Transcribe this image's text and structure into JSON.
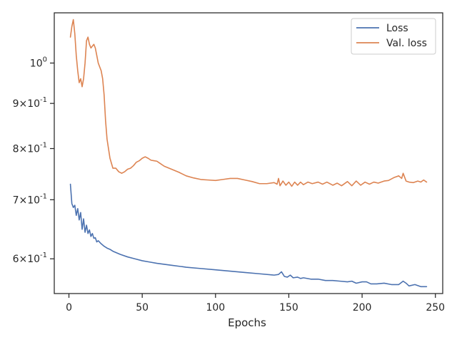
{
  "chart_data": {
    "type": "line",
    "title": "",
    "xlabel": "Epochs",
    "ylabel": "",
    "xlim": [
      -10,
      255
    ],
    "ylim": [
      0.548,
      1.14
    ],
    "yscale": "log",
    "grid": false,
    "legend_position": "top-right",
    "x_ticks": [
      0,
      50,
      100,
      150,
      200,
      250
    ],
    "x_tick_labels": [
      "0",
      "50",
      "100",
      "150",
      "200",
      "250"
    ],
    "y_ticks": [
      1.0,
      0.9,
      0.8,
      0.7,
      0.6
    ],
    "y_tick_labels": [
      "10^0",
      "9×10^-1",
      "8×10^-1",
      "7×10^-1",
      "6×10^-1"
    ],
    "series": [
      {
        "name": "Loss",
        "color": "#4c72b0",
        "points": [
          [
            1,
            0.729
          ],
          [
            2,
            0.693
          ],
          [
            3,
            0.686
          ],
          [
            4,
            0.69
          ],
          [
            5,
            0.672
          ],
          [
            6,
            0.684
          ],
          [
            7,
            0.664
          ],
          [
            8,
            0.677
          ],
          [
            9,
            0.648
          ],
          [
            10,
            0.666
          ],
          [
            11,
            0.643
          ],
          [
            12,
            0.655
          ],
          [
            13,
            0.641
          ],
          [
            14,
            0.647
          ],
          [
            15,
            0.636
          ],
          [
            16,
            0.641
          ],
          [
            17,
            0.633
          ],
          [
            18,
            0.634
          ],
          [
            19,
            0.627
          ],
          [
            20,
            0.629
          ],
          [
            22,
            0.624
          ],
          [
            24,
            0.62
          ],
          [
            26,
            0.617
          ],
          [
            28,
            0.615
          ],
          [
            30,
            0.612
          ],
          [
            32,
            0.61
          ],
          [
            35,
            0.607
          ],
          [
            40,
            0.603
          ],
          [
            45,
            0.6
          ],
          [
            50,
            0.597
          ],
          [
            55,
            0.595
          ],
          [
            60,
            0.593
          ],
          [
            70,
            0.59
          ],
          [
            80,
            0.587
          ],
          [
            90,
            0.585
          ],
          [
            100,
            0.583
          ],
          [
            110,
            0.581
          ],
          [
            120,
            0.579
          ],
          [
            130,
            0.577
          ],
          [
            140,
            0.575
          ],
          [
            143,
            0.576
          ],
          [
            145,
            0.58
          ],
          [
            147,
            0.573
          ],
          [
            149,
            0.572
          ],
          [
            151,
            0.575
          ],
          [
            153,
            0.571
          ],
          [
            156,
            0.572
          ],
          [
            158,
            0.57
          ],
          [
            160,
            0.571
          ],
          [
            165,
            0.569
          ],
          [
            170,
            0.569
          ],
          [
            175,
            0.567
          ],
          [
            180,
            0.567
          ],
          [
            185,
            0.566
          ],
          [
            190,
            0.565
          ],
          [
            193,
            0.566
          ],
          [
            196,
            0.563
          ],
          [
            200,
            0.565
          ],
          [
            203,
            0.565
          ],
          [
            206,
            0.562
          ],
          [
            210,
            0.562
          ],
          [
            215,
            0.563
          ],
          [
            220,
            0.561
          ],
          [
            225,
            0.561
          ],
          [
            228,
            0.566
          ],
          [
            230,
            0.563
          ],
          [
            232,
            0.559
          ],
          [
            236,
            0.561
          ],
          [
            240,
            0.558
          ],
          [
            244,
            0.558
          ]
        ]
      },
      {
        "name": "Val. loss",
        "color": "#dd8452",
        "points": [
          [
            1,
            1.07
          ],
          [
            2,
            1.1
          ],
          [
            3,
            1.12
          ],
          [
            4,
            1.08
          ],
          [
            5,
            1.02
          ],
          [
            6,
            0.98
          ],
          [
            7,
            0.95
          ],
          [
            8,
            0.96
          ],
          [
            9,
            0.94
          ],
          [
            10,
            0.96
          ],
          [
            11,
            1.0
          ],
          [
            12,
            1.06
          ],
          [
            13,
            1.07
          ],
          [
            14,
            1.05
          ],
          [
            15,
            1.04
          ],
          [
            16,
            1.045
          ],
          [
            17,
            1.05
          ],
          [
            18,
            1.04
          ],
          [
            19,
            1.02
          ],
          [
            20,
            1.0
          ],
          [
            22,
            0.98
          ],
          [
            23,
            0.96
          ],
          [
            24,
            0.92
          ],
          [
            25,
            0.86
          ],
          [
            26,
            0.82
          ],
          [
            28,
            0.78
          ],
          [
            30,
            0.76
          ],
          [
            32,
            0.76
          ],
          [
            34,
            0.753
          ],
          [
            36,
            0.75
          ],
          [
            38,
            0.753
          ],
          [
            40,
            0.758
          ],
          [
            42,
            0.76
          ],
          [
            44,
            0.765
          ],
          [
            46,
            0.772
          ],
          [
            48,
            0.775
          ],
          [
            50,
            0.78
          ],
          [
            52,
            0.783
          ],
          [
            54,
            0.78
          ],
          [
            56,
            0.776
          ],
          [
            58,
            0.775
          ],
          [
            60,
            0.774
          ],
          [
            62,
            0.77
          ],
          [
            65,
            0.764
          ],
          [
            70,
            0.758
          ],
          [
            75,
            0.752
          ],
          [
            80,
            0.745
          ],
          [
            85,
            0.741
          ],
          [
            90,
            0.738
          ],
          [
            95,
            0.737
          ],
          [
            100,
            0.736
          ],
          [
            105,
            0.738
          ],
          [
            110,
            0.74
          ],
          [
            115,
            0.74
          ],
          [
            120,
            0.737
          ],
          [
            125,
            0.734
          ],
          [
            130,
            0.73
          ],
          [
            135,
            0.73
          ],
          [
            140,
            0.732
          ],
          [
            142,
            0.729
          ],
          [
            143,
            0.74
          ],
          [
            144,
            0.726
          ],
          [
            146,
            0.735
          ],
          [
            148,
            0.727
          ],
          [
            150,
            0.733
          ],
          [
            152,
            0.725
          ],
          [
            154,
            0.733
          ],
          [
            156,
            0.727
          ],
          [
            158,
            0.733
          ],
          [
            160,
            0.728
          ],
          [
            163,
            0.733
          ],
          [
            166,
            0.73
          ],
          [
            170,
            0.733
          ],
          [
            173,
            0.729
          ],
          [
            176,
            0.733
          ],
          [
            180,
            0.727
          ],
          [
            183,
            0.731
          ],
          [
            186,
            0.726
          ],
          [
            190,
            0.734
          ],
          [
            193,
            0.726
          ],
          [
            196,
            0.735
          ],
          [
            199,
            0.727
          ],
          [
            202,
            0.733
          ],
          [
            205,
            0.729
          ],
          [
            208,
            0.733
          ],
          [
            211,
            0.731
          ],
          [
            215,
            0.735
          ],
          [
            218,
            0.736
          ],
          [
            222,
            0.742
          ],
          [
            225,
            0.745
          ],
          [
            227,
            0.74
          ],
          [
            228,
            0.75
          ],
          [
            230,
            0.735
          ],
          [
            232,
            0.733
          ],
          [
            235,
            0.732
          ],
          [
            238,
            0.735
          ],
          [
            240,
            0.733
          ],
          [
            242,
            0.737
          ],
          [
            244,
            0.733
          ]
        ]
      }
    ]
  }
}
